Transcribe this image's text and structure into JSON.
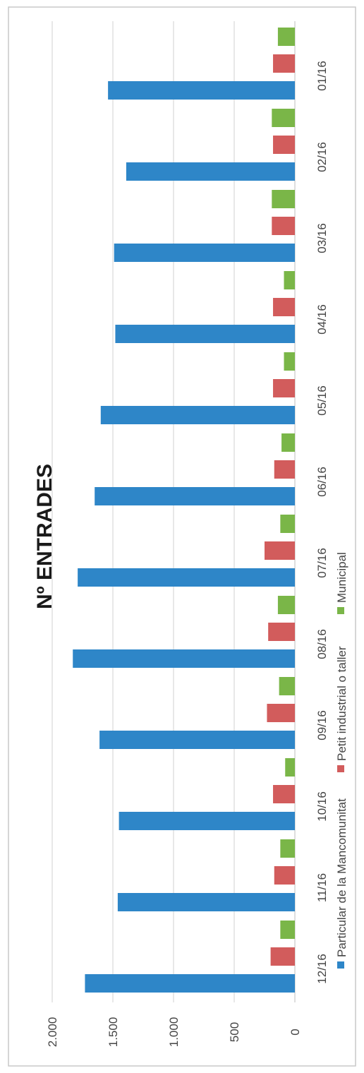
{
  "chart_data": {
    "type": "bar",
    "orientation": "rotated",
    "title": "Nº ENTRADES",
    "xlabel": "",
    "ylabel": "",
    "categories": [
      "01/16",
      "02/16",
      "03/16",
      "04/16",
      "05/16",
      "06/16",
      "07/16",
      "08/16",
      "09/16",
      "10/16",
      "11/16",
      "12/16"
    ],
    "series": [
      {
        "name": "Particular de la Mancomunitat",
        "color": "#2e86c8",
        "values": [
          1540,
          1390,
          1490,
          1480,
          1600,
          1650,
          1790,
          1830,
          1610,
          1450,
          1460,
          1730
        ]
      },
      {
        "name": "Petit industrial o taller",
        "color": "#d25c5c",
        "values": [
          180,
          180,
          190,
          180,
          180,
          170,
          250,
          220,
          230,
          180,
          170,
          200
        ]
      },
      {
        "name": "Municipal",
        "color": "#7ab648",
        "values": [
          140,
          190,
          190,
          90,
          90,
          110,
          120,
          140,
          130,
          80,
          120,
          120
        ]
      }
    ],
    "ylim": [
      0,
      2000
    ],
    "yticks": [
      0,
      500,
      1000,
      1500,
      2000
    ],
    "ytick_labels": [
      "0",
      "500",
      "1.000",
      "1.500",
      "2.000"
    ],
    "grid": true,
    "legend_position": "bottom"
  }
}
